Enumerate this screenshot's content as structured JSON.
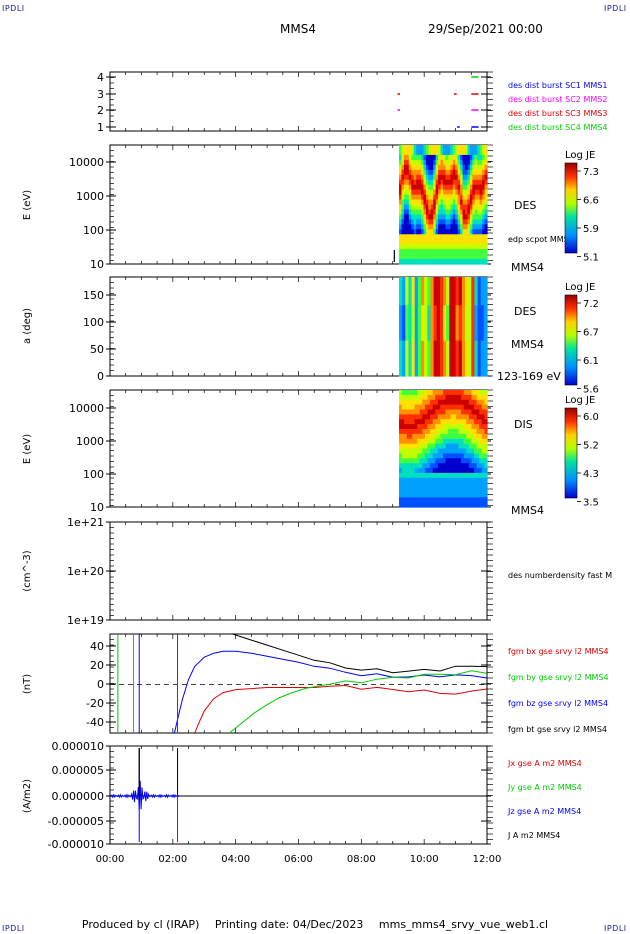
{
  "corner_labels": {
    "top_left": "IPDLI",
    "top_right": "IPDLI",
    "bottom_left": "IPDLI",
    "bottom_right": "IPDLI"
  },
  "header": {
    "spacecraft": "MMS4",
    "date_time": "29/Sep/2021 00:00"
  },
  "footer": {
    "produced_by": "Produced by cl (IRAP)",
    "printing_date": "Printing date: 04/Dec/2023",
    "file": "mms_mms4_srvy_vue_web1.cl"
  },
  "colors": {
    "mms1": "#0000ff",
    "mms2": "#ff00ff",
    "mms3": "#dd0000",
    "mms4": "#00cc00",
    "bx": "#dd0000",
    "by": "#00cc00",
    "bz": "#0000ff",
    "bt": "#000000"
  },
  "chart_data": [
    {
      "id": "burst",
      "type": "scatter",
      "yticks": [
        "1",
        "2",
        "3",
        "4"
      ],
      "ylim": [
        0.5,
        4.5
      ],
      "legend": [
        "des dist burst SC1 MMS1",
        "des dist burst SC2 MMS2",
        "des dist burst SC3 MMS3",
        "des dist burst SC4 MMS4"
      ],
      "segments": [
        {
          "sc": 4,
          "x": [
            11.5,
            11.7
          ]
        },
        {
          "sc": 3,
          "x": [
            9.15,
            9.2
          ]
        },
        {
          "sc": 3,
          "x": [
            10.95,
            11.0
          ]
        },
        {
          "sc": 3,
          "x": [
            11.5,
            11.7
          ]
        },
        {
          "sc": 2,
          "x": [
            9.15,
            9.2
          ]
        },
        {
          "sc": 2,
          "x": [
            11.5,
            11.7
          ]
        },
        {
          "sc": 1,
          "x": [
            11.05,
            11.1
          ]
        },
        {
          "sc": 1,
          "x": [
            11.5,
            11.7
          ]
        }
      ]
    },
    {
      "id": "des_energy",
      "type": "heatmap",
      "ylabel": "E (eV)",
      "yticks": [
        "10000",
        "1000",
        "100",
        "10"
      ],
      "yscale": "log",
      "ylim": [
        10,
        30000
      ],
      "label": "DES",
      "extra_label": "edp scpot MMS4",
      "below_label": "MMS4",
      "colorbar": {
        "title": "Log JE",
        "ticks": [
          "7.3",
          "6.6",
          "5.9",
          "5.1"
        ]
      },
      "data_start": 9.2
    },
    {
      "id": "des_pitch",
      "type": "heatmap",
      "ylabel": "a (deg)",
      "yticks": [
        "150",
        "100",
        "50",
        "0"
      ],
      "ylim": [
        0,
        180
      ],
      "label": "DES",
      "extra_label": "MMS4",
      "below_label": "123-169 eV",
      "colorbar": {
        "title": "Log JE",
        "ticks": [
          "7.2",
          "6.7",
          "6.1",
          "5.6"
        ]
      },
      "data_start": 9.2
    },
    {
      "id": "dis_energy",
      "type": "heatmap",
      "ylabel": "E (eV)",
      "yticks": [
        "10000",
        "1000",
        "100",
        "10"
      ],
      "yscale": "log",
      "ylim": [
        10,
        30000
      ],
      "label": "DIS",
      "below_label": "MMS4",
      "colorbar": {
        "title": "Log JE",
        "ticks": [
          "6.0",
          "5.2",
          "4.3",
          "3.5"
        ]
      },
      "data_start": 9.2
    },
    {
      "id": "density",
      "type": "line",
      "ylabel": "(cm^-3)",
      "yticks": [
        "1e+21",
        "1e+20",
        "1e+19"
      ],
      "yscale": "log",
      "legend": [
        "des numberdensity fast M"
      ]
    },
    {
      "id": "fgm",
      "type": "line",
      "ylabel": "(nT)",
      "yticks": [
        "40",
        "20",
        "0",
        "-20",
        "-40"
      ],
      "ylim": [
        -48,
        50
      ],
      "legend": [
        "fgm bx gse srvy l2 MMS4",
        "fgm by gse srvy l2 MMS4",
        "fgm bz gse srvy l2 MMS4",
        "fgm bt gse srvy l2 MMS4"
      ],
      "series": [
        {
          "name": "fgm bt gse srvy l2 MMS4",
          "x": [
            3.9,
            4.5,
            5.0,
            5.5,
            6.0,
            6.5,
            7.0,
            7.5,
            8.0,
            8.5,
            9.0,
            9.5,
            10.0,
            10.5,
            11.0,
            11.5,
            12.0
          ],
          "y": [
            50,
            44,
            39,
            34,
            29,
            24,
            20,
            17,
            15,
            14,
            13,
            13,
            14,
            15,
            17,
            18,
            19
          ]
        },
        {
          "name": "fgm bz gse srvy l2 MMS4",
          "x": [
            2.05,
            2.15,
            2.3,
            2.5,
            2.7,
            3.0,
            3.3,
            3.6,
            4.0,
            4.5,
            5.0,
            5.5,
            6.0,
            6.5,
            7.0,
            7.5,
            8.0,
            8.5,
            9.0,
            9.5,
            10.0,
            10.5,
            11.0,
            11.5,
            12.0
          ],
          "y": [
            -48,
            -35,
            -15,
            5,
            18,
            27,
            31,
            33,
            33,
            31,
            28,
            25,
            22,
            18,
            15,
            12,
            10,
            9,
            8,
            8,
            8,
            9,
            9,
            8,
            8
          ]
        },
        {
          "name": "fgm bx gse srvy l2 MMS4",
          "x": [
            2.7,
            2.8,
            3.0,
            3.3,
            3.6,
            4.0,
            4.5,
            5.0,
            5.5,
            6.0,
            6.5,
            7.0,
            7.5,
            8.0,
            8.5,
            9.0,
            9.5,
            10.0,
            10.5,
            11.0,
            11.5,
            12.0
          ],
          "y": [
            -48,
            -40,
            -26,
            -14,
            -8,
            -5,
            -4,
            -3,
            -3,
            -3,
            -3,
            -2,
            -2,
            -3,
            -4,
            -5,
            -6,
            -7,
            -8,
            -9,
            -8,
            -3
          ]
        },
        {
          "name": "fgm by gse srvy l2 MMS4",
          "x": [
            3.8,
            4.2,
            4.6,
            5.0,
            5.4,
            5.8,
            6.2,
            6.6,
            7.0,
            7.5,
            8.0,
            8.5,
            9.0,
            9.5,
            10.0,
            10.5,
            11.0,
            11.5,
            12.0
          ],
          "y": [
            -48,
            -38,
            -28,
            -20,
            -13,
            -8,
            -4,
            -1,
            1,
            2,
            3,
            5,
            6,
            8,
            9,
            10,
            11,
            12,
            12
          ]
        }
      ]
    },
    {
      "id": "current",
      "type": "line",
      "ylabel": "(A/m2)",
      "yticks": [
        "0.000010",
        "0.000005",
        "0.000000",
        "-0.000005",
        "-0.000010"
      ],
      "ylim": [
        -1e-05,
        1e-05
      ],
      "legend": [
        "Jx gse A m2 MMS4",
        "Jy gse A m2 MMS4",
        "Jz gse A m2 MMS4",
        "J A m2 MMS4"
      ]
    }
  ],
  "x_axis": {
    "ticks": [
      "00:00",
      "02:00",
      "04:00",
      "06:00",
      "08:00",
      "10:00",
      "12:00"
    ],
    "range": [
      0,
      12
    ]
  }
}
